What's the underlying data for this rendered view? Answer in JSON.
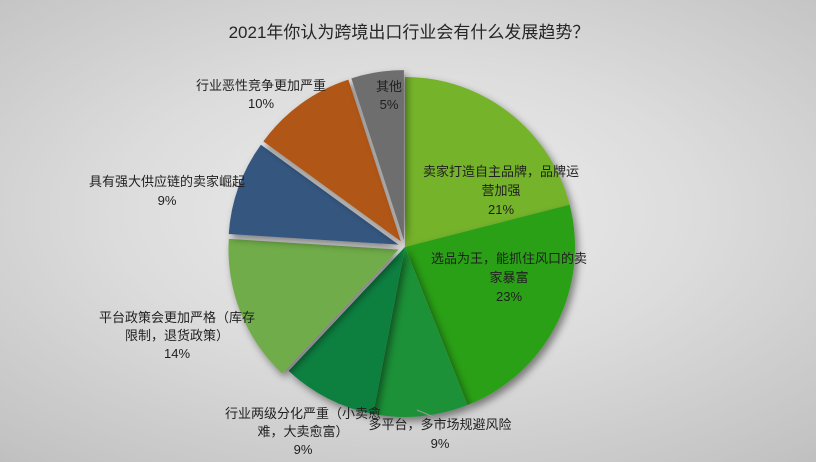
{
  "background": {
    "center_color": "#ededed",
    "edge_color": "#8c8c8c"
  },
  "chart_data": {
    "type": "pie",
    "title": "2021年你认为跨境出口行业会有什么发展趋势？",
    "start_angle_deg": 0,
    "direction": "clockwise",
    "legend": "none",
    "slices": [
      {
        "label": "卖家打造自主品牌，品牌运营加强",
        "value_pct": 21,
        "pct_label": "21%",
        "color": "#74B32B",
        "exploded": false,
        "label_position": "inside",
        "label_lines": [
          "卖家打造自主品牌，品牌运",
          "营加强",
          "21%"
        ]
      },
      {
        "label": "选品为王，能抓住风口的卖家暴富",
        "value_pct": 23,
        "pct_label": "23%",
        "color": "#2CA014",
        "exploded": false,
        "label_position": "inside",
        "label_lines": [
          "选品为王，能抓住风口的卖",
          "家暴富",
          "23%"
        ]
      },
      {
        "label": "多平台，多市场规避风险",
        "value_pct": 9,
        "pct_label": "9%",
        "color": "#1F9137",
        "exploded": false,
        "label_position": "outside",
        "has_leader_line": true,
        "label_lines": [
          "多平台，多市场规避风险",
          "9%"
        ]
      },
      {
        "label": "行业两级分化严重（小卖愈难，大卖愈富）",
        "value_pct": 9,
        "pct_label": "9%",
        "color": "#0E8040",
        "exploded": false,
        "label_position": "outside",
        "label_lines": [
          "行业两级分化严重（小卖愈",
          "难，大卖愈富）",
          "9%"
        ]
      },
      {
        "label": "平台政策会更加严格（库存限制，退货政策）",
        "value_pct": 14,
        "pct_label": "14%",
        "color": "#6FAC4A",
        "exploded": true,
        "label_position": "outside",
        "label_lines": [
          "平台政策会更加严格（库存",
          "限制，退货政策）",
          "14%"
        ]
      },
      {
        "label": "具有强大供应链的卖家崛起",
        "value_pct": 9,
        "pct_label": "9%",
        "color": "#34567F",
        "exploded": true,
        "label_position": "outside",
        "label_lines": [
          "具有强大供应链的卖家崛起",
          "9%"
        ]
      },
      {
        "label": "行业恶性竞争更加严重",
        "value_pct": 10,
        "pct_label": "10%",
        "color": "#B05614",
        "exploded": true,
        "label_position": "outside",
        "label_lines": [
          "行业恶性竞争更加严重",
          "10%"
        ]
      },
      {
        "label": "其他",
        "value_pct": 5,
        "pct_label": "5%",
        "color": "#6E6E6E",
        "exploded": true,
        "label_position": "outside",
        "label_lines": [
          "其他",
          "5%"
        ]
      }
    ]
  }
}
